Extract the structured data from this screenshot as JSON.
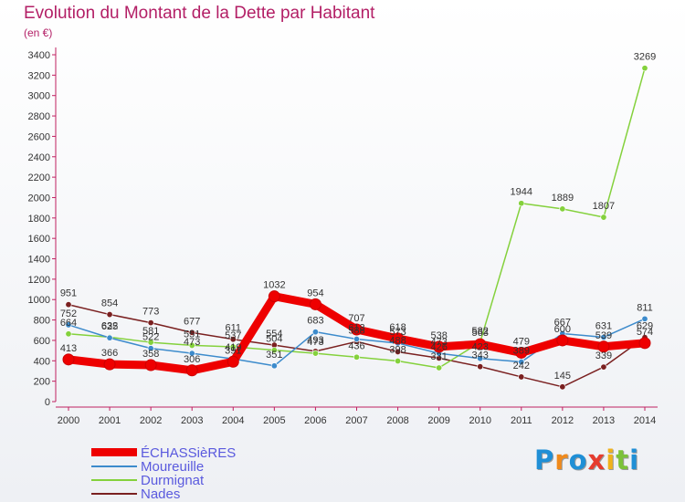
{
  "title": "Evolution du Montant de la Dette par Habitant",
  "subtitle": "(en €)",
  "logo_text": "Proxiti",
  "chart_data": {
    "type": "line",
    "x": [
      "2000",
      "2001",
      "2002",
      "2003",
      "2004",
      "2005",
      "2006",
      "2007",
      "2008",
      "2009",
      "2010",
      "2011",
      "2012",
      "2013",
      "2014"
    ],
    "ylim": [
      0,
      3400
    ],
    "yticks": [
      "0",
      "200",
      "400",
      "600",
      "800",
      "1000",
      "1200",
      "1400",
      "1600",
      "1800",
      "2000",
      "2200",
      "2400",
      "2600",
      "2800",
      "3000",
      "3200",
      "3400"
    ],
    "grid": false,
    "legend_position": "bottom-left",
    "series": [
      {
        "name": "ÉCHASSièRES",
        "color": "#ee0000",
        "values": [
          413,
          366,
          358,
          306,
          391,
          1032,
          954,
          707,
          618,
          538,
          563,
          479,
          600,
          539,
          574
        ]
      },
      {
        "name": "Moureuille",
        "color": "#3d8bcc",
        "values": [
          752,
          625,
          522,
          473,
          419,
          351,
          683,
          613,
          573,
          473,
          423,
          389,
          667,
          631,
          811
        ]
      },
      {
        "name": "Durmignat",
        "color": "#84d13c",
        "values": [
          664,
          632,
          581,
          551,
          537,
          504,
          473,
          436,
          398,
          331,
          582,
          1944,
          1889,
          1807,
          3269
        ]
      },
      {
        "name": "Nades",
        "color": "#7a2020",
        "values": [
          951,
          854,
          773,
          677,
          611,
          554,
          493,
          588,
          488,
          426,
          343,
          242,
          145,
          339,
          629
        ]
      }
    ],
    "data_labels": [
      [
        "413",
        "366",
        "358",
        "306",
        "391",
        "1032",
        "954",
        "707",
        "618",
        "538",
        "563",
        "479",
        "600",
        "539",
        "574"
      ],
      [
        "752",
        "625",
        "522",
        "473",
        "419",
        "351",
        "683",
        "613",
        "573",
        "473",
        "423",
        "389",
        "667",
        "631",
        "811"
      ],
      [
        "664",
        "632",
        "581",
        "551",
        "537",
        "504",
        "473",
        "436",
        "398",
        "331",
        "582",
        "1944",
        "1889",
        "1807",
        "3269"
      ],
      [
        "951",
        "854",
        "773",
        "677",
        "611",
        "554",
        "493",
        "588",
        "488",
        "426",
        "343",
        "242",
        "145",
        "339",
        "629"
      ]
    ]
  }
}
